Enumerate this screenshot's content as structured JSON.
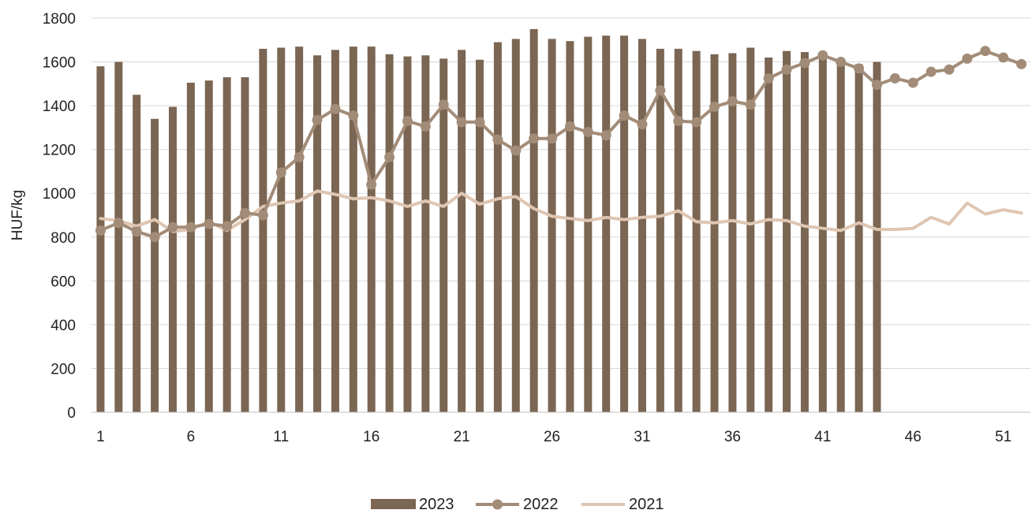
{
  "chart_data": {
    "type": "bar",
    "title": "",
    "xlabel": "",
    "ylabel": "HUF/kg",
    "ylim": [
      0,
      1800
    ],
    "yticks": [
      0,
      200,
      400,
      600,
      800,
      1000,
      1200,
      1400,
      1600,
      1800
    ],
    "xlim": [
      1,
      52
    ],
    "xticks": [
      1,
      6,
      11,
      16,
      21,
      26,
      31,
      36,
      41,
      46,
      51
    ],
    "grid": "horizontal",
    "legend": "bottom-center",
    "series": [
      {
        "name": "2023",
        "type": "bar",
        "color": "#7b6653",
        "x": [
          1,
          2,
          3,
          4,
          5,
          6,
          7,
          8,
          9,
          10,
          11,
          12,
          13,
          14,
          15,
          16,
          17,
          18,
          19,
          20,
          21,
          22,
          23,
          24,
          25,
          26,
          27,
          28,
          29,
          30,
          31,
          32,
          33,
          34,
          35,
          36,
          37,
          38,
          39,
          40,
          41,
          42,
          43,
          44
        ],
        "values": [
          1580,
          1600,
          1450,
          1340,
          1395,
          1505,
          1515,
          1530,
          1530,
          1660,
          1665,
          1670,
          1630,
          1655,
          1670,
          1670,
          1635,
          1625,
          1630,
          1615,
          1655,
          1610,
          1690,
          1705,
          1750,
          1705,
          1695,
          1715,
          1720,
          1720,
          1705,
          1660,
          1660,
          1650,
          1635,
          1640,
          1665,
          1620,
          1650,
          1645,
          1630,
          1590,
          1590,
          1600
        ]
      },
      {
        "name": "2022",
        "type": "line",
        "color": "#a28c78",
        "markers": true,
        "x": [
          1,
          2,
          3,
          4,
          5,
          6,
          7,
          8,
          9,
          10,
          11,
          12,
          13,
          14,
          15,
          16,
          17,
          18,
          19,
          20,
          21,
          22,
          23,
          24,
          25,
          26,
          27,
          28,
          29,
          30,
          31,
          32,
          33,
          34,
          35,
          36,
          37,
          38,
          39,
          40,
          41,
          42,
          43,
          44,
          45,
          46,
          47,
          48,
          49,
          50,
          51,
          52
        ],
        "values": [
          830,
          865,
          825,
          800,
          845,
          845,
          860,
          850,
          910,
          900,
          1095,
          1165,
          1335,
          1385,
          1355,
          1040,
          1165,
          1330,
          1305,
          1405,
          1325,
          1325,
          1245,
          1195,
          1250,
          1250,
          1305,
          1280,
          1265,
          1355,
          1315,
          1470,
          1330,
          1325,
          1395,
          1420,
          1405,
          1525,
          1565,
          1595,
          1630,
          1600,
          1570,
          1495,
          1525,
          1505,
          1555,
          1565,
          1615,
          1650,
          1620,
          1590
        ]
      },
      {
        "name": "2021",
        "type": "line",
        "color": "#dfc6b2",
        "markers": false,
        "x": [
          1,
          2,
          3,
          4,
          5,
          6,
          7,
          8,
          9,
          10,
          11,
          12,
          13,
          14,
          15,
          16,
          17,
          18,
          19,
          20,
          21,
          22,
          23,
          24,
          25,
          26,
          27,
          28,
          29,
          30,
          31,
          32,
          33,
          34,
          35,
          36,
          37,
          38,
          39,
          40,
          41,
          42,
          43,
          44,
          45,
          46,
          47,
          48,
          49,
          50,
          51,
          52
        ],
        "values": [
          885,
          875,
          850,
          880,
          825,
          835,
          870,
          830,
          880,
          940,
          955,
          965,
          1010,
          995,
          975,
          980,
          965,
          940,
          965,
          940,
          1000,
          950,
          975,
          985,
          930,
          895,
          885,
          875,
          890,
          880,
          890,
          895,
          920,
          870,
          865,
          875,
          860,
          880,
          875,
          850,
          840,
          830,
          865,
          835,
          835,
          840,
          890,
          860,
          955,
          905,
          925,
          910
        ]
      }
    ]
  }
}
